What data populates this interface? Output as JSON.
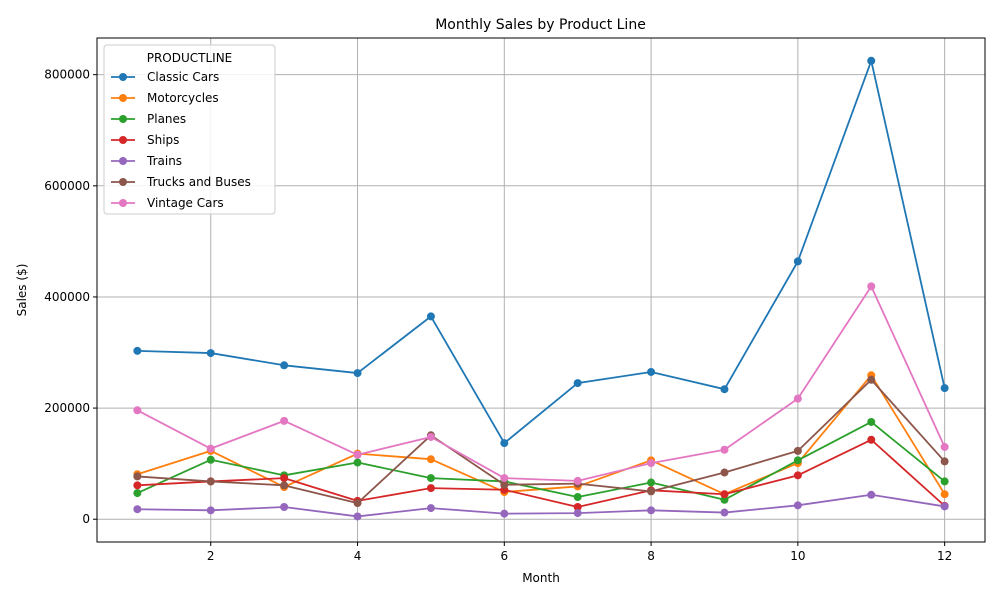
{
  "chart_data": {
    "type": "line",
    "title": "Monthly Sales by Product Line",
    "xlabel": "Month",
    "ylabel": "Sales ($)",
    "xlim": [
      0.45,
      12.55
    ],
    "ylim": [
      -41000,
      866000
    ],
    "xticks": [
      2,
      4,
      6,
      8,
      10,
      12
    ],
    "yticks": [
      0,
      200000,
      400000,
      600000,
      800000
    ],
    "grid": true,
    "legend": {
      "title": "PRODUCTLINE",
      "placement": "top-left"
    },
    "x": [
      1,
      2,
      3,
      4,
      5,
      6,
      7,
      8,
      9,
      10,
      11,
      12
    ],
    "series": [
      {
        "name": "Classic Cars",
        "color": "#1f77b4",
        "values": [
          303000,
          299000,
          277000,
          263000,
          365000,
          137000,
          245000,
          265000,
          234000,
          464000,
          825000,
          236000
        ]
      },
      {
        "name": "Motorcycles",
        "color": "#ff7f0e",
        "values": [
          81000,
          123000,
          58000,
          118000,
          108000,
          49000,
          59000,
          106000,
          45000,
          101000,
          259000,
          45000
        ]
      },
      {
        "name": "Planes",
        "color": "#2ca02c",
        "values": [
          47000,
          107000,
          79000,
          102000,
          74000,
          68000,
          40000,
          66000,
          35000,
          106000,
          175000,
          68000
        ]
      },
      {
        "name": "Ships",
        "color": "#d62728",
        "values": [
          61000,
          68000,
          74000,
          33000,
          56000,
          53000,
          22000,
          52000,
          45000,
          79000,
          143000,
          24000
        ]
      },
      {
        "name": "Trains",
        "color": "#9467bd",
        "values": [
          18000,
          16000,
          22000,
          5000,
          20000,
          10000,
          11000,
          16000,
          12000,
          25000,
          44000,
          23000
        ]
      },
      {
        "name": "Trucks and Buses",
        "color": "#8c564b",
        "values": [
          77000,
          68000,
          61000,
          29000,
          151000,
          62000,
          64000,
          50000,
          84000,
          123000,
          251000,
          104000
        ]
      },
      {
        "name": "Vintage Cars",
        "color": "#e377c2",
        "values": [
          196000,
          127000,
          177000,
          116000,
          148000,
          74000,
          69000,
          101000,
          125000,
          217000,
          419000,
          130000
        ]
      }
    ]
  }
}
